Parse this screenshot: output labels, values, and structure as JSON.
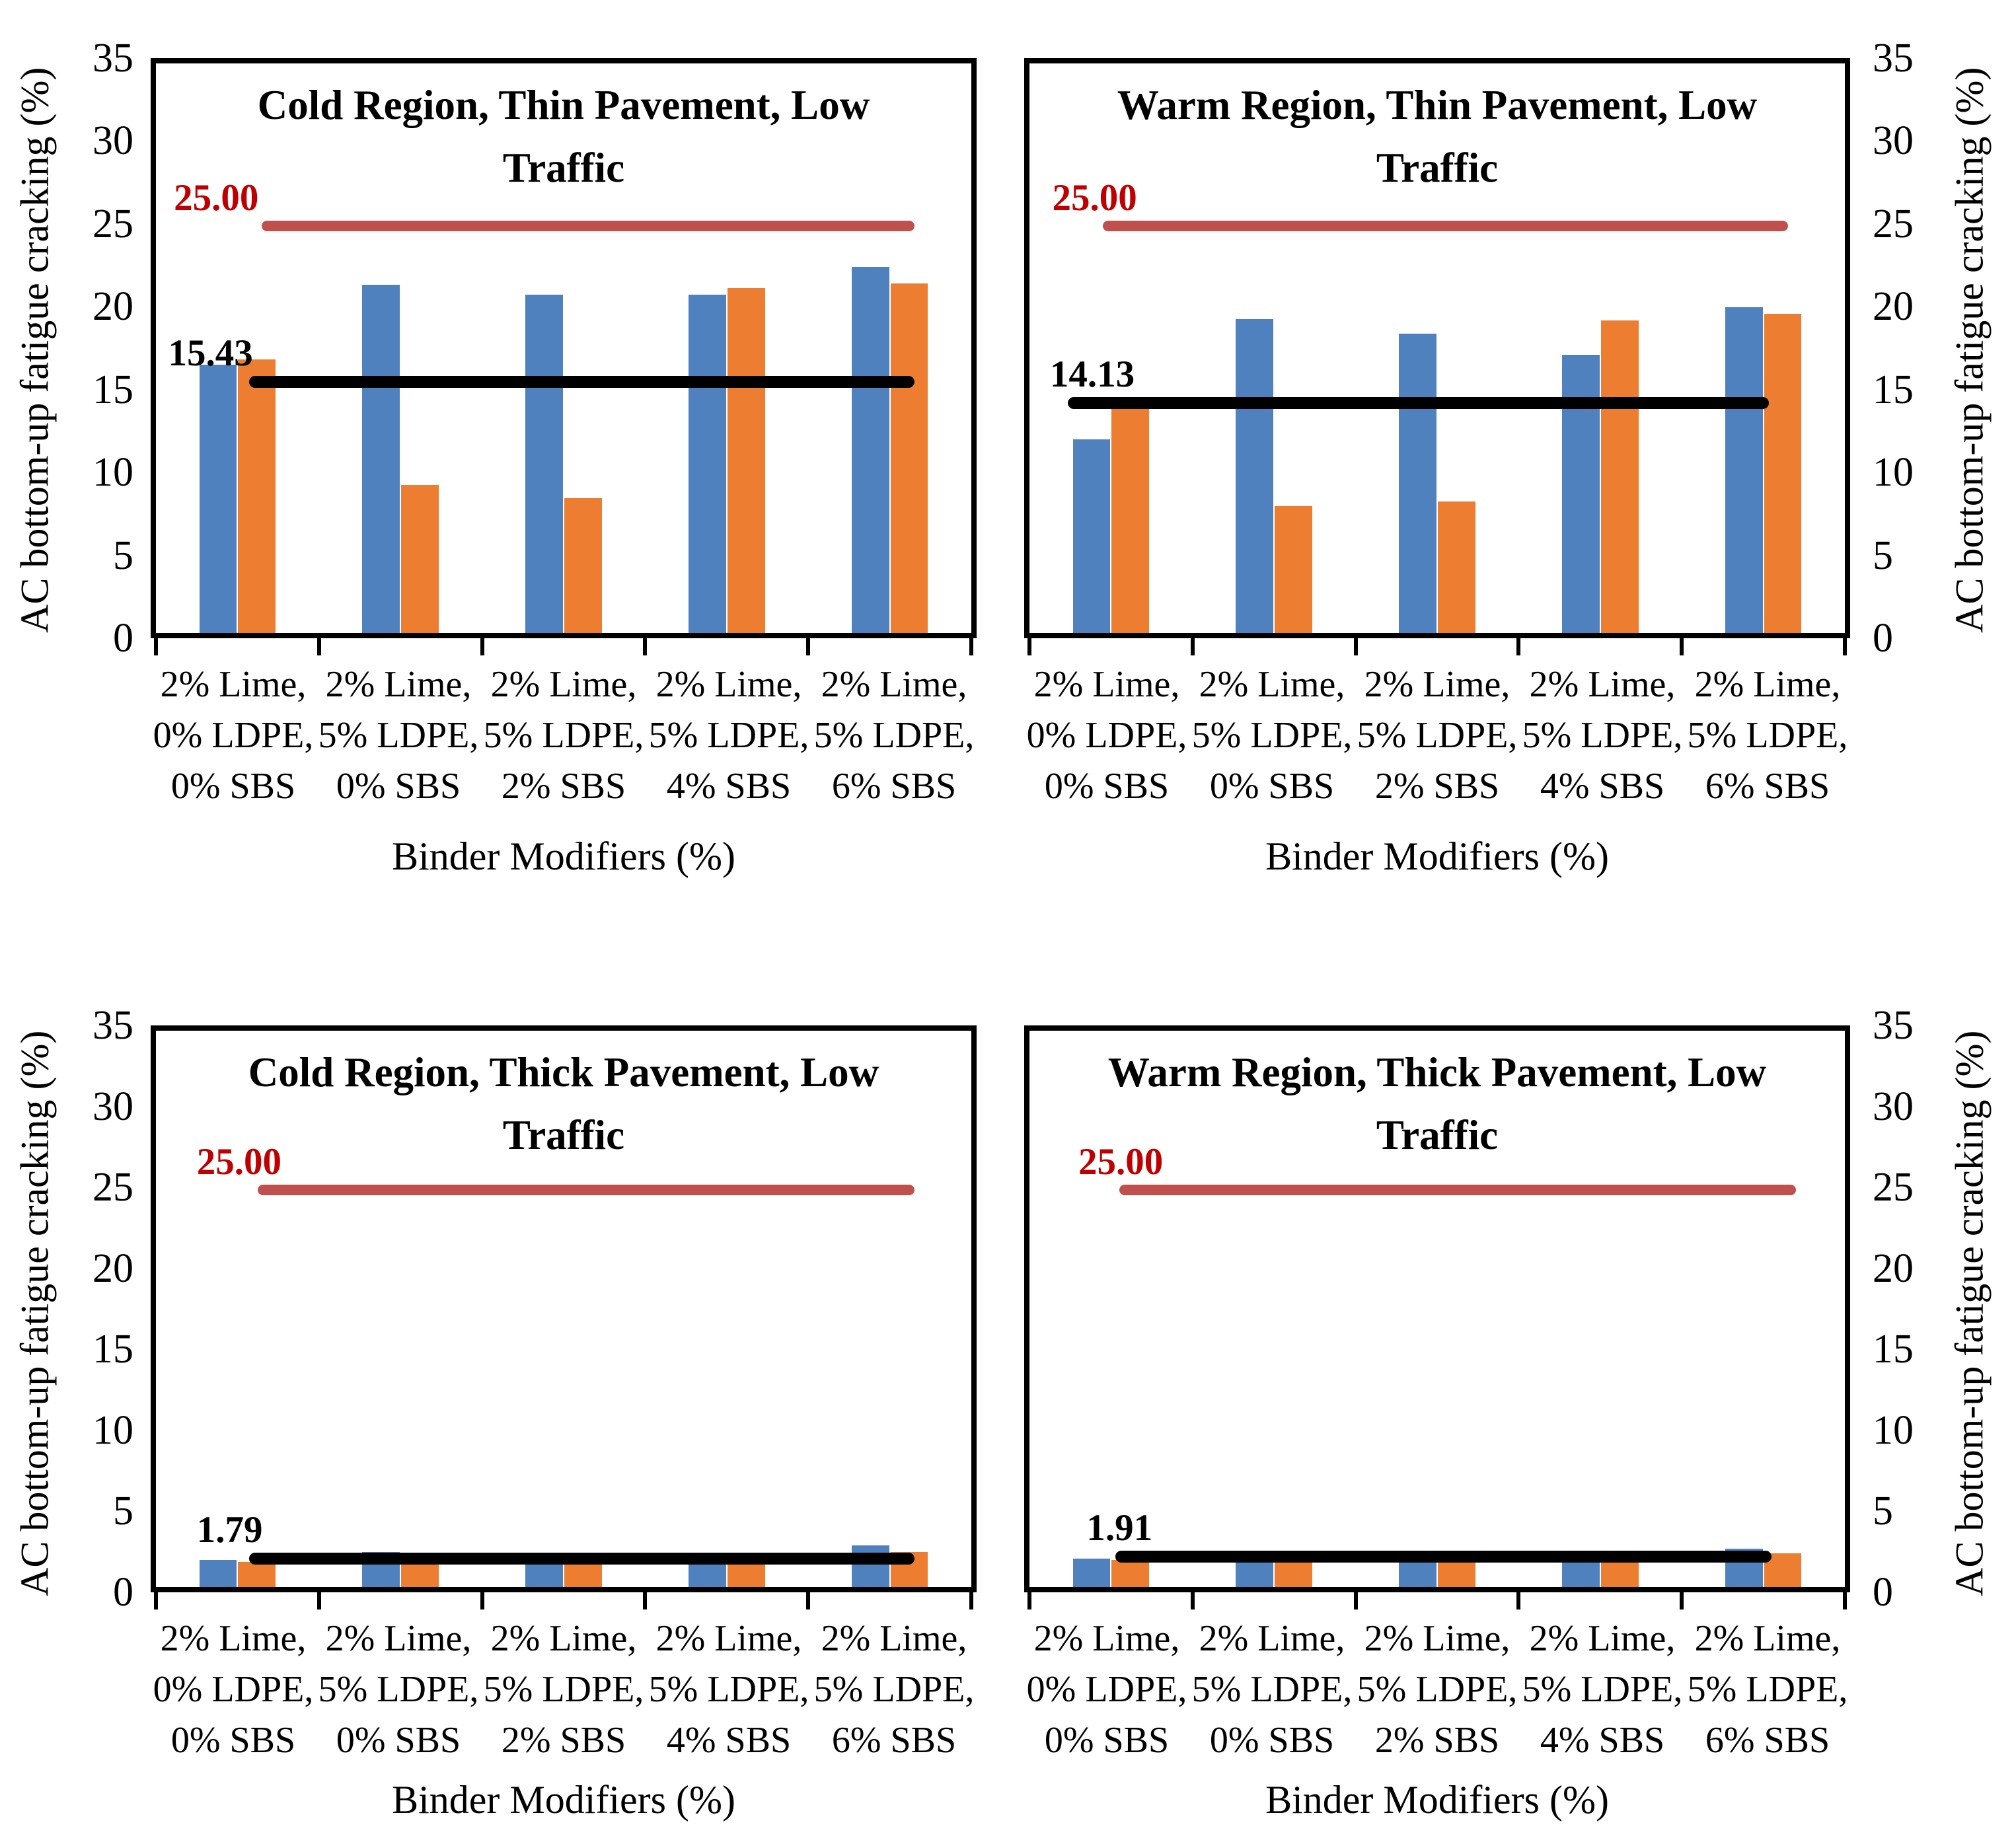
{
  "figure": {
    "background": "#ffffff",
    "rows": 2,
    "cols": 2
  },
  "colors": {
    "blue_series": "#4E81BD",
    "orange_series": "#ED7D31",
    "red_line": "#C0504D",
    "red_label": "#C00000",
    "black": "#000000"
  },
  "axes": {
    "y_label": "AC bottom-up fatigue cracking (%)",
    "x_label": "Binder Modifiers (%)",
    "y_ticks": [
      0,
      5,
      10,
      15,
      20,
      25,
      30,
      35
    ],
    "y_max": 35,
    "categories_lines": [
      [
        "2% Lime,",
        "0% LDPE,",
        "0% SBS"
      ],
      [
        "2% Lime,",
        "5% LDPE,",
        "0% SBS"
      ],
      [
        "2% Lime,",
        "5% LDPE,",
        "2% SBS"
      ],
      [
        "2% Lime,",
        "5% LDPE,",
        "4% SBS"
      ],
      [
        "2% Lime,",
        "5% LDPE,",
        "6% SBS"
      ]
    ]
  },
  "chart_data": [
    {
      "type": "bar",
      "title": "Cold Region, Thin Pavement, Low Traffic",
      "ylabel": "AC bottom-up fatigue cracking (%)",
      "xlabel": "Binder Modifiers (%)",
      "ylim": [
        0,
        35
      ],
      "y_axis_side": "left",
      "grid": false,
      "legend": "none",
      "categories": [
        "2% Lime, 0% LDPE, 0% SBS",
        "2% Lime, 5% LDPE, 0% SBS",
        "2% Lime, 5% LDPE, 2% SBS",
        "2% Lime, 5% LDPE, 4% SBS",
        "2% Lime, 5% LDPE, 6% SBS"
      ],
      "series": [
        {
          "name": "blue",
          "color": "#4E81BD",
          "values": [
            16.5,
            21.4,
            20.8,
            20.8,
            22.5
          ]
        },
        {
          "name": "orange",
          "color": "#ED7D31",
          "values": [
            16.8,
            9.1,
            8.3,
            21.2,
            21.5
          ]
        }
      ],
      "ref_lines": [
        {
          "name": "red-limit-line",
          "label": "25.00",
          "value": 25.0,
          "color": "#C0504D",
          "label_color": "#C00000",
          "x0": 13.0,
          "x1": 93.0,
          "label_x": 2.2,
          "thickness": 16
        },
        {
          "name": "black-reference-line",
          "label": "15.43",
          "value": 15.43,
          "color": "#000000",
          "label_color": "#000000",
          "x0": 11.4,
          "x1": 93.0,
          "label_x": 1.5,
          "thickness": 18
        }
      ]
    },
    {
      "type": "bar",
      "title": "Warm Region, Thin Pavement, Low Traffic",
      "ylabel": "AC bottom-up fatigue cracking (%)",
      "xlabel": "Binder Modifiers (%)",
      "ylim": [
        0,
        35
      ],
      "y_axis_side": "right",
      "grid": false,
      "legend": "none",
      "categories": [
        "2% Lime, 0% LDPE, 0% SBS",
        "2% Lime, 5% LDPE, 0% SBS",
        "2% Lime, 5% LDPE, 2% SBS",
        "2% Lime, 5% LDPE, 4% SBS",
        "2% Lime, 5% LDPE, 6% SBS"
      ],
      "series": [
        {
          "name": "blue",
          "color": "#4E81BD",
          "values": [
            11.9,
            19.3,
            18.4,
            17.1,
            20.0
          ]
        },
        {
          "name": "orange",
          "color": "#ED7D31",
          "values": [
            14.0,
            7.8,
            8.1,
            19.2,
            19.6
          ]
        }
      ],
      "ref_lines": [
        {
          "name": "red-limit-line",
          "label": "25.00",
          "value": 25.0,
          "color": "#C0504D",
          "label_color": "#C00000",
          "x0": 9.0,
          "x1": 93.0,
          "label_x": 2.8,
          "thickness": 16
        },
        {
          "name": "black-reference-line",
          "label": "14.13",
          "value": 14.13,
          "color": "#000000",
          "label_color": "#000000",
          "x0": 4.7,
          "x1": 90.7,
          "label_x": 2.5,
          "thickness": 18
        }
      ]
    },
    {
      "type": "bar",
      "title": "Cold Region, Thick Pavement, Low Traffic",
      "ylabel": "AC bottom-up fatigue cracking (%)",
      "xlabel": "Binder Modifiers (%)",
      "ylim": [
        0,
        35
      ],
      "y_axis_side": "left",
      "grid": false,
      "legend": "none",
      "categories": [
        "2% Lime, 0% LDPE, 0% SBS",
        "2% Lime, 5% LDPE, 0% SBS",
        "2% Lime, 5% LDPE, 2% SBS",
        "2% Lime, 5% LDPE, 4% SBS",
        "2% Lime, 5% LDPE, 6% SBS"
      ],
      "series": [
        {
          "name": "blue",
          "color": "#4E81BD",
          "values": [
            1.7,
            2.2,
            1.9,
            1.6,
            2.6
          ]
        },
        {
          "name": "orange",
          "color": "#ED7D31",
          "values": [
            1.6,
            1.6,
            1.6,
            2.1,
            2.2
          ]
        }
      ],
      "ref_lines": [
        {
          "name": "red-limit-line",
          "label": "25.00",
          "value": 25.0,
          "color": "#C0504D",
          "label_color": "#C00000",
          "x0": 12.5,
          "x1": 93.0,
          "label_x": 5.0,
          "thickness": 16
        },
        {
          "name": "black-reference-line",
          "label": "1.79",
          "value": 1.79,
          "color": "#000000",
          "label_color": "#000000",
          "x0": 11.4,
          "x1": 93.0,
          "label_x": 5.0,
          "thickness": 18
        }
      ]
    },
    {
      "type": "bar",
      "title": "Warm Region, Thick Pavement, Low Traffic",
      "ylabel": "AC bottom-up fatigue cracking (%)",
      "xlabel": "Binder Modifiers (%)",
      "ylim": [
        0,
        35
      ],
      "y_axis_side": "right",
      "grid": false,
      "legend": "none",
      "categories": [
        "2% Lime, 0% LDPE, 0% SBS",
        "2% Lime, 5% LDPE, 0% SBS",
        "2% Lime, 5% LDPE, 2% SBS",
        "2% Lime, 5% LDPE, 4% SBS",
        "2% Lime, 5% LDPE, 6% SBS"
      ],
      "series": [
        {
          "name": "blue",
          "color": "#4E81BD",
          "values": [
            1.8,
            2.1,
            1.7,
            1.7,
            2.4
          ]
        },
        {
          "name": "orange",
          "color": "#ED7D31",
          "values": [
            1.7,
            1.7,
            1.7,
            2.0,
            2.1
          ]
        }
      ],
      "ref_lines": [
        {
          "name": "red-limit-line",
          "label": "25.00",
          "value": 25.0,
          "color": "#C0504D",
          "label_color": "#C00000",
          "x0": 11.0,
          "x1": 94.0,
          "label_x": 6.0,
          "thickness": 16
        },
        {
          "name": "black-reference-line",
          "label": "1.91",
          "value": 1.91,
          "color": "#000000",
          "label_color": "#000000",
          "x0": 10.5,
          "x1": 91.0,
          "label_x": 7.0,
          "thickness": 18
        }
      ]
    }
  ]
}
